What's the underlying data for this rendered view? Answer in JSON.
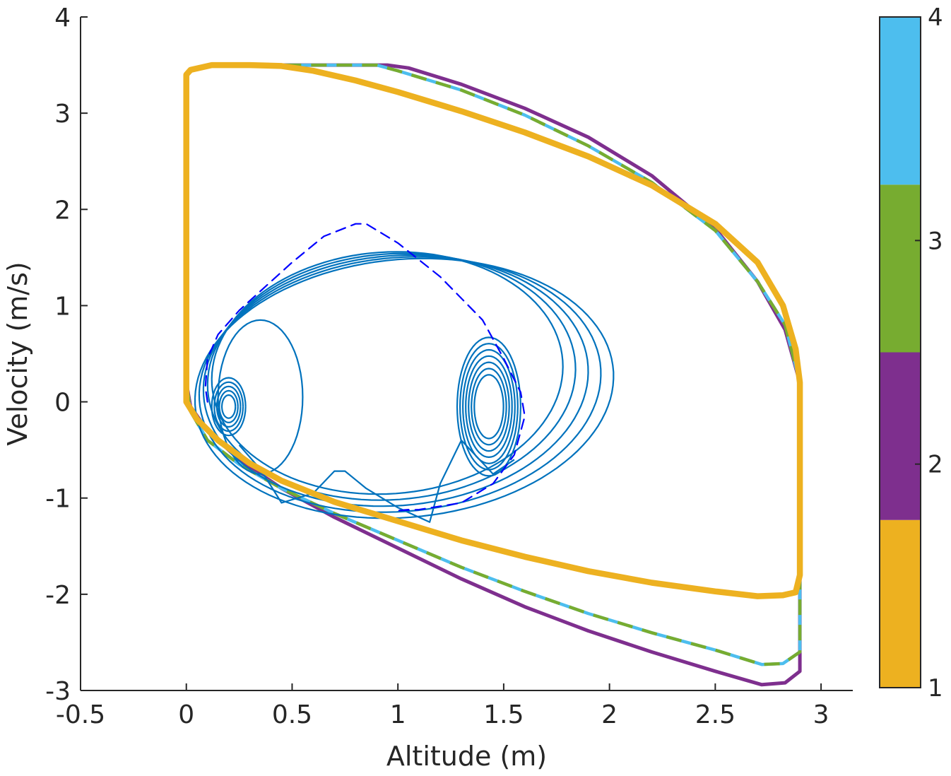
{
  "chart_data": {
    "type": "line",
    "title": "",
    "xlabel": "Altitude (m)",
    "ylabel": "Velocity (m/s)",
    "xlim": [
      -0.5,
      3.15
    ],
    "ylim": [
      -3,
      4
    ],
    "x_ticks": [
      -0.5,
      0,
      0.5,
      1,
      1.5,
      2,
      2.5,
      3
    ],
    "x_tick_labels": [
      "-0.5",
      "0",
      "0.5",
      "1",
      "1.5",
      "2",
      "2.5",
      "3"
    ],
    "y_ticks": [
      -3,
      -2,
      -1,
      0,
      1,
      2,
      3,
      4
    ],
    "y_tick_labels": [
      "-3",
      "-2",
      "-1",
      "0",
      "1",
      "2",
      "3",
      "4"
    ],
    "grid": false,
    "colors": {
      "level1": "#EDB120",
      "level2": "#7E2F8E",
      "level3": "#77AC30",
      "level4": "#4DBEEE",
      "trajectory": "#0072BD",
      "reference": "#0000FF",
      "axis": "#262626"
    },
    "colorbar": {
      "ticks": [
        1,
        2,
        3,
        4
      ],
      "tick_labels": [
        "1",
        "2",
        "3",
        "4"
      ],
      "segments": [
        {
          "level": 1,
          "color": "#EDB120"
        },
        {
          "level": 2,
          "color": "#7E2F8E"
        },
        {
          "level": 3,
          "color": "#77AC30"
        },
        {
          "level": 4,
          "color": "#4DBEEE"
        }
      ]
    },
    "series": [
      {
        "level": 2,
        "style": "solid",
        "x": [
          0.0,
          0.03,
          0.1,
          0.25,
          0.5,
          0.7,
          0.95,
          1.05,
          1.3,
          1.6,
          1.9,
          2.2,
          2.5,
          2.7,
          2.83,
          2.9,
          2.9,
          2.9,
          2.83,
          2.72,
          2.5,
          2.2,
          1.9,
          1.6,
          1.3,
          1.0,
          0.7,
          0.45,
          0.25,
          0.1,
          0.02,
          0.0,
          0.0
        ],
        "y": [
          3.4,
          3.45,
          3.5,
          3.5,
          3.5,
          3.5,
          3.5,
          3.47,
          3.3,
          3.05,
          2.75,
          2.35,
          1.8,
          1.25,
          0.75,
          0.2,
          -1.5,
          -2.8,
          -2.92,
          -2.94,
          -2.8,
          -2.6,
          -2.38,
          -2.13,
          -1.84,
          -1.52,
          -1.2,
          -0.9,
          -0.6,
          -0.3,
          -0.05,
          0.2,
          3.4
        ]
      },
      {
        "level": 4,
        "style": "solid",
        "x": [
          0.0,
          0.03,
          0.1,
          0.25,
          0.5,
          0.7,
          0.9,
          1.0,
          1.3,
          1.6,
          1.9,
          2.2,
          2.5,
          2.7,
          2.83,
          2.9,
          2.9,
          2.9,
          2.82,
          2.72,
          2.5,
          2.2,
          1.9,
          1.6,
          1.3,
          1.0,
          0.7,
          0.45,
          0.25,
          0.1,
          0.02,
          0.0,
          0.0
        ],
        "y": [
          3.4,
          3.45,
          3.5,
          3.5,
          3.5,
          3.5,
          3.5,
          3.44,
          3.24,
          2.98,
          2.66,
          2.28,
          1.78,
          1.25,
          0.8,
          0.2,
          -1.6,
          -2.6,
          -2.72,
          -2.73,
          -2.58,
          -2.4,
          -2.2,
          -1.97,
          -1.72,
          -1.44,
          -1.16,
          -0.9,
          -0.65,
          -0.4,
          -0.1,
          0.2,
          3.4
        ]
      },
      {
        "level": 3,
        "style": "dashed",
        "x": [
          0.0,
          0.03,
          0.1,
          0.25,
          0.5,
          0.7,
          0.9,
          1.0,
          1.3,
          1.6,
          1.9,
          2.2,
          2.5,
          2.7,
          2.83,
          2.9,
          2.9,
          2.9,
          2.82,
          2.72,
          2.5,
          2.2,
          1.9,
          1.6,
          1.3,
          1.0,
          0.7,
          0.45,
          0.25,
          0.1,
          0.02,
          0.0,
          0.0
        ],
        "y": [
          3.4,
          3.45,
          3.5,
          3.5,
          3.5,
          3.5,
          3.5,
          3.44,
          3.24,
          2.98,
          2.66,
          2.28,
          1.78,
          1.25,
          0.8,
          0.2,
          -1.6,
          -2.6,
          -2.72,
          -2.73,
          -2.58,
          -2.4,
          -2.2,
          -1.97,
          -1.72,
          -1.44,
          -1.16,
          -0.9,
          -0.65,
          -0.4,
          -0.1,
          0.2,
          3.4
        ]
      },
      {
        "level": 1,
        "style": "solid",
        "x": [
          0.0,
          0.0,
          0.02,
          0.12,
          0.3,
          0.45,
          0.6,
          0.8,
          1.0,
          1.3,
          1.6,
          1.9,
          2.2,
          2.5,
          2.7,
          2.82,
          2.88,
          2.9,
          2.9,
          2.9,
          2.88,
          2.82,
          2.7,
          2.5,
          2.2,
          1.9,
          1.6,
          1.3,
          1.0,
          0.7,
          0.45,
          0.3,
          0.15,
          0.05,
          0.0,
          0.0
        ],
        "y": [
          0.2,
          3.4,
          3.45,
          3.5,
          3.5,
          3.49,
          3.44,
          3.34,
          3.22,
          3.02,
          2.8,
          2.55,
          2.25,
          1.85,
          1.45,
          1.0,
          0.55,
          0.2,
          -0.6,
          -1.8,
          -1.98,
          -2.01,
          -2.02,
          -1.97,
          -1.88,
          -1.76,
          -1.61,
          -1.44,
          -1.24,
          -1.04,
          -0.82,
          -0.64,
          -0.4,
          -0.18,
          0.0,
          0.2
        ]
      },
      {
        "name": "",
        "role": "reference",
        "style": "dashed",
        "x": [
          0.1,
          0.09,
          0.1,
          0.15,
          0.25,
          0.35,
          0.5,
          0.65,
          0.8,
          0.85,
          1.0,
          1.2,
          1.4,
          1.5,
          1.58,
          1.6,
          1.55,
          1.45,
          1.3,
          1.1,
          1.0,
          1.05
        ],
        "y": [
          0.0,
          0.15,
          0.45,
          0.7,
          0.95,
          1.15,
          1.45,
          1.72,
          1.85,
          1.85,
          1.65,
          1.3,
          0.85,
          0.45,
          0.1,
          -0.15,
          -0.55,
          -0.85,
          -1.05,
          -1.12,
          -1.13,
          -1.12
        ]
      }
    ]
  }
}
